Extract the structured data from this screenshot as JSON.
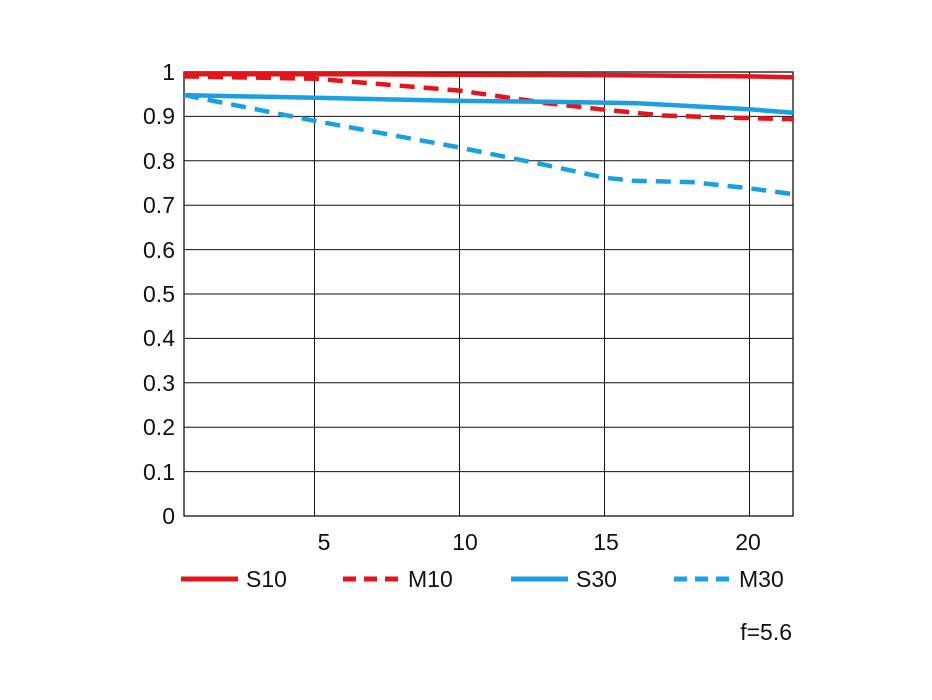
{
  "chart_data": {
    "type": "line",
    "x_range": [
      0.5,
      21.5
    ],
    "y_range": [
      0,
      1
    ],
    "grid": true,
    "x_ticks": [
      5,
      10,
      15,
      20
    ],
    "y_ticks": [
      0,
      0.1,
      0.2,
      0.3,
      0.4,
      0.5,
      0.6,
      0.7,
      0.8,
      0.9,
      1
    ],
    "x_tick_labels": [
      "5",
      "10",
      "15",
      "20"
    ],
    "y_tick_labels": [
      "0",
      "0.1",
      "0.2",
      "0.3",
      "0.4",
      "0.5",
      "0.6",
      "0.7",
      "0.8",
      "0.9",
      "1"
    ],
    "legend_position": "bottom",
    "annotation": "f=5.6",
    "series": [
      {
        "name": "S10",
        "color": "#e3141b",
        "dash": "solid",
        "x": [
          0.5,
          5,
          10,
          15,
          20,
          21.5
        ],
        "y": [
          0.995,
          0.995,
          0.994,
          0.993,
          0.99,
          0.988
        ]
      },
      {
        "name": "M10",
        "color": "#e3141b",
        "dash": "dashed",
        "x": [
          0.5,
          5,
          10,
          13,
          15,
          17,
          20,
          21.5
        ],
        "y": [
          0.99,
          0.985,
          0.958,
          0.93,
          0.915,
          0.902,
          0.896,
          0.894
        ]
      },
      {
        "name": "S30",
        "color": "#1a9fe0",
        "dash": "solid",
        "x": [
          0.5,
          5,
          10,
          13,
          16,
          20,
          21.5
        ],
        "y": [
          0.948,
          0.942,
          0.935,
          0.933,
          0.93,
          0.916,
          0.908
        ]
      },
      {
        "name": "M30",
        "color": "#1a9fe0",
        "dash": "dashed",
        "x": [
          0.5,
          5,
          10,
          13,
          15,
          16,
          18,
          20,
          21.5
        ],
        "y": [
          0.948,
          0.89,
          0.83,
          0.79,
          0.762,
          0.755,
          0.752,
          0.738,
          0.725
        ]
      }
    ]
  }
}
